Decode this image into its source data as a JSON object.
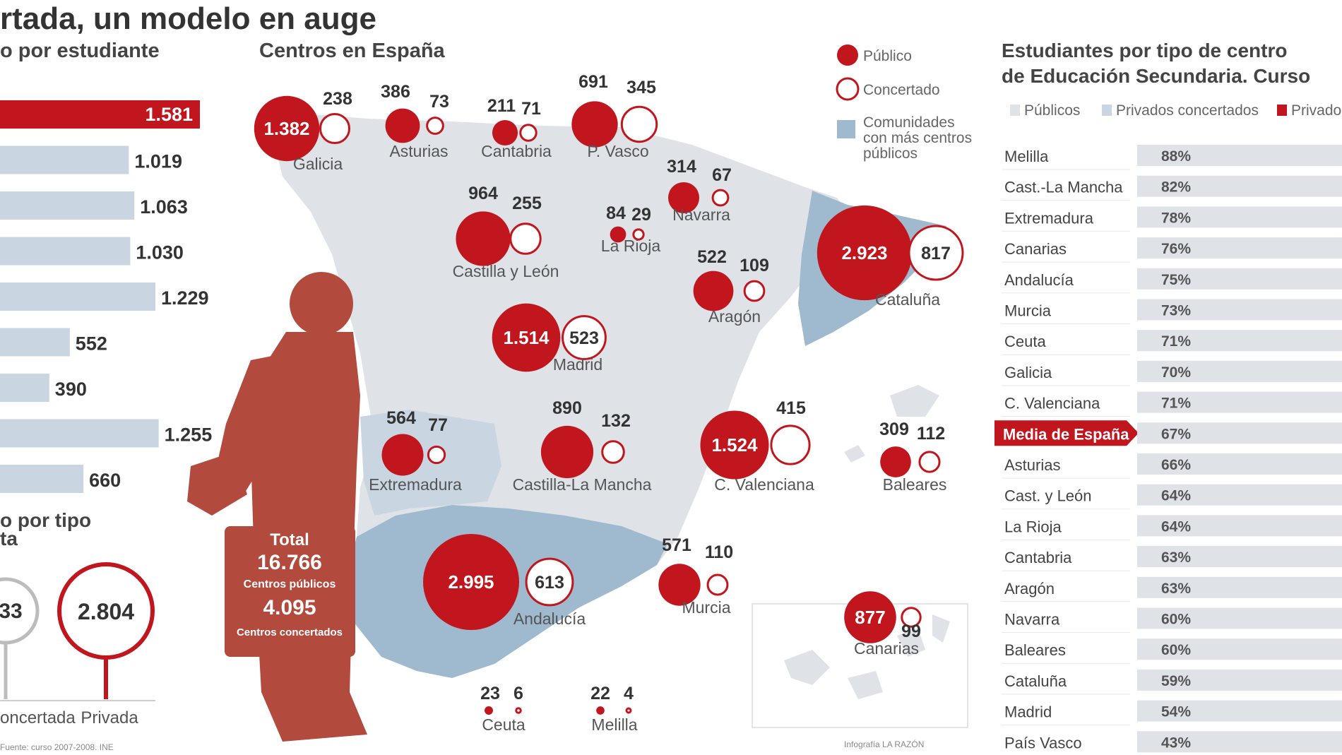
{
  "header": {
    "title": "rtada, un modelo en auge",
    "left_subtitle": "o por estudiante",
    "map_subtitle": "Centros en España",
    "right_title_line1": "Estudiantes por tipo de centro",
    "right_title_line2": "de Educación Secundaria. Curso"
  },
  "colors": {
    "red": "#c1161d",
    "light_blue": "#c9d6e2",
    "map_blue": "#9fb9ce",
    "map_grey": "#dfe3e8",
    "student": "#b34a3e"
  },
  "chart_data": [
    {
      "type": "bar",
      "title": "o por estudiante",
      "values": [
        1581,
        1019,
        1063,
        1030,
        1229,
        552,
        390,
        1255,
        660
      ],
      "value_labels": [
        "1.581",
        "1.019",
        "1.063",
        "1.030",
        "1.229",
        "552",
        "390",
        "1.255",
        "660"
      ],
      "highlight_index": 0
    },
    {
      "type": "bar",
      "title": "o por tipo",
      "title_line2": "ta",
      "categories": [
        "oncertada",
        "Privada"
      ],
      "value_labels": [
        "33",
        "2.804"
      ]
    },
    {
      "type": "scatter",
      "title": "Centros en España",
      "legend": {
        "public": "Público",
        "concertado": "Concertado",
        "blue_area": "Comunidades con más centros públicos"
      },
      "regions": [
        {
          "name": "Galicia",
          "publico": 1382,
          "publico_label": "1.382",
          "concertado": 238,
          "concertado_label": "238"
        },
        {
          "name": "Asturias",
          "publico": 386,
          "publico_label": "386",
          "concertado": 73,
          "concertado_label": "73"
        },
        {
          "name": "Cantabria",
          "publico": 211,
          "publico_label": "211",
          "concertado": 71,
          "concertado_label": "71"
        },
        {
          "name": "P. Vasco",
          "publico": 691,
          "publico_label": "691",
          "concertado": 345,
          "concertado_label": "345"
        },
        {
          "name": "Navarra",
          "publico": 314,
          "publico_label": "314",
          "concertado": 67,
          "concertado_label": "67"
        },
        {
          "name": "Castilla y León",
          "publico": 964,
          "publico_label": "964",
          "concertado": 255,
          "concertado_label": "255"
        },
        {
          "name": "La Rioja",
          "publico": 84,
          "publico_label": "84",
          "concertado": 29,
          "concertado_label": "29"
        },
        {
          "name": "Cataluña",
          "publico": 2923,
          "publico_label": "2.923",
          "concertado": 817,
          "concertado_label": "817"
        },
        {
          "name": "Aragón",
          "publico": 522,
          "publico_label": "522",
          "concertado": 109,
          "concertado_label": "109"
        },
        {
          "name": "Madrid",
          "publico": 1514,
          "publico_label": "1.514",
          "concertado": 523,
          "concertado_label": "523"
        },
        {
          "name": "Extremadura",
          "publico": 564,
          "publico_label": "564",
          "concertado": 77,
          "concertado_label": "77"
        },
        {
          "name": "Castilla-La Mancha",
          "publico": 890,
          "publico_label": "890",
          "concertado": 132,
          "concertado_label": "132"
        },
        {
          "name": "C. Valenciana",
          "publico": 1524,
          "publico_label": "1.524",
          "concertado": 415,
          "concertado_label": "415"
        },
        {
          "name": "Baleares",
          "publico": 309,
          "publico_label": "309",
          "concertado": 112,
          "concertado_label": "112"
        },
        {
          "name": "Andalucía",
          "publico": 2995,
          "publico_label": "2.995",
          "concertado": 613,
          "concertado_label": "613"
        },
        {
          "name": "Murcia",
          "publico": 571,
          "publico_label": "571",
          "concertado": 110,
          "concertado_label": "110"
        },
        {
          "name": "Canarias",
          "publico": 877,
          "publico_label": "877",
          "concertado": 99,
          "concertado_label": "99"
        },
        {
          "name": "Ceuta",
          "publico": 23,
          "publico_label": "23",
          "concertado": 6,
          "concertado_label": "6"
        },
        {
          "name": "Melilla",
          "publico": 22,
          "publico_label": "22",
          "concertado": 4,
          "concertado_label": "4"
        }
      ],
      "totals": {
        "total_label": "Total",
        "total_value": "16.766",
        "public_label": "Centros públicos",
        "concertado_value": "4.095",
        "concertado_label": "Centros concertados"
      }
    },
    {
      "type": "bar",
      "title": "Estudiantes por tipo de centro de Educación Secundaria. Curso",
      "legend": [
        "Públicos",
        "Privados concertados",
        "Privado"
      ],
      "categories": [
        "Melilla",
        "Cast.-La Mancha",
        "Extremadura",
        "Canarias",
        "Andalucía",
        "Murcia",
        "Ceuta",
        "Galicia",
        "C. Valenciana",
        "Media de España",
        "Asturias",
        "Cast. y León",
        "La Rioja",
        "Cantabria",
        "Aragón",
        "Navarra",
        "Baleares",
        "Cataluña",
        "Madrid",
        "País Vasco"
      ],
      "publicos_pct": [
        88,
        82,
        78,
        76,
        75,
        73,
        71,
        70,
        71,
        67,
        66,
        64,
        64,
        63,
        63,
        60,
        60,
        59,
        54,
        43
      ],
      "pct_labels": [
        "88%",
        "82%",
        "78%",
        "76%",
        "75%",
        "73%",
        "71%",
        "70%",
        "71%",
        "67%",
        "66%",
        "64%",
        "64%",
        "63%",
        "63%",
        "60%",
        "60%",
        "59%",
        "54%",
        "43%"
      ],
      "highlight_category": "Media de España"
    }
  ],
  "footer": {
    "source_left": "Fuente: curso 2007-2008. INE",
    "credit_right": "Infografía LA RAZÓN"
  }
}
